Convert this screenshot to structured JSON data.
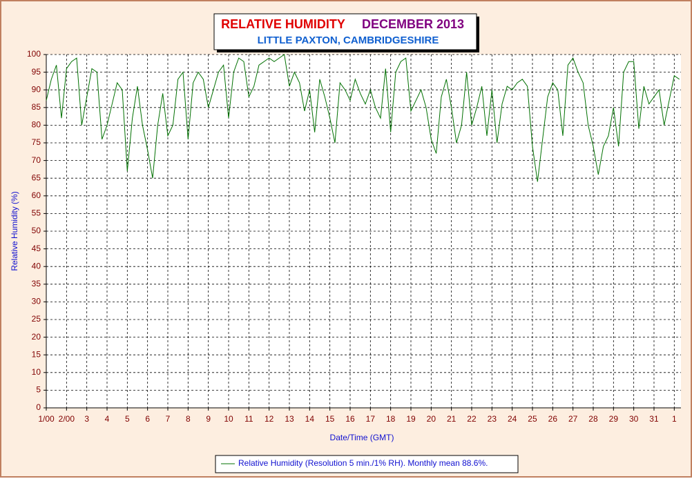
{
  "chart_data": {
    "type": "line",
    "title": "RELATIVE HUMIDITY",
    "title_period": "DECEMBER 2013",
    "subtitle": "LITTLE PAXTON, CAMBRIDGESHIRE",
    "x_label": "Date/Time (GMT)",
    "y_label": "Relative Humidity (%)",
    "x": [
      1,
      1.25,
      1.5,
      1.75,
      2,
      2.25,
      2.5,
      2.75,
      3,
      3.25,
      3.5,
      3.75,
      4,
      4.25,
      4.5,
      4.75,
      5,
      5.25,
      5.5,
      5.75,
      6,
      6.25,
      6.5,
      6.75,
      7,
      7.25,
      7.5,
      7.75,
      8,
      8.25,
      8.5,
      8.75,
      9,
      9.25,
      9.5,
      9.75,
      10,
      10.25,
      10.5,
      10.75,
      11,
      11.25,
      11.5,
      11.75,
      12,
      12.25,
      12.5,
      12.75,
      13,
      13.25,
      13.5,
      13.75,
      14,
      14.25,
      14.5,
      14.75,
      15,
      15.25,
      15.5,
      15.75,
      16,
      16.25,
      16.5,
      16.75,
      17,
      17.25,
      17.5,
      17.75,
      18,
      18.25,
      18.5,
      18.75,
      19,
      19.25,
      19.5,
      19.75,
      20,
      20.25,
      20.5,
      20.75,
      21,
      21.25,
      21.5,
      21.75,
      22,
      22.25,
      22.5,
      22.75,
      23,
      23.25,
      23.5,
      23.75,
      24,
      24.25,
      24.5,
      24.75,
      25,
      25.25,
      25.5,
      25.75,
      26,
      26.25,
      26.5,
      26.75,
      27,
      27.25,
      27.5,
      27.75,
      28,
      28.25,
      28.5,
      28.75,
      29,
      29.25,
      29.5,
      29.75,
      30,
      30.25,
      30.5,
      30.75,
      31,
      31.25,
      31.5,
      31.75,
      32,
      32.25
    ],
    "series": [
      {
        "name": "Relative Humidity (Resolution 5 min./1% RH). Monthly mean 88.6%.",
        "color": "#007000",
        "values": [
          87,
          93,
          97,
          82,
          96,
          98,
          99,
          80,
          88,
          96,
          95,
          76,
          80,
          86,
          92,
          90,
          67,
          82,
          91,
          80,
          73,
          65,
          80,
          89,
          77,
          80,
          93,
          95,
          76,
          92,
          95,
          93,
          85,
          90,
          95,
          97,
          82,
          95,
          99,
          98,
          88,
          91,
          97,
          98,
          99,
          98,
          99,
          100,
          91,
          95,
          92,
          84,
          90,
          78,
          93,
          88,
          82,
          75,
          92,
          90,
          87,
          93,
          89,
          86,
          90,
          85,
          82,
          96,
          78,
          95,
          98,
          99,
          84,
          87,
          90,
          85,
          76,
          72,
          88,
          93,
          85,
          75,
          80,
          95,
          80,
          85,
          91,
          77,
          90,
          75,
          86,
          91,
          90,
          92,
          93,
          91,
          74,
          64,
          76,
          88,
          92,
          90,
          77,
          97,
          99,
          95,
          92,
          80,
          74,
          66,
          74,
          77,
          85,
          74,
          95,
          98,
          98,
          79,
          91,
          86,
          88,
          90,
          80,
          87,
          94,
          93
        ]
      }
    ],
    "xlim": [
      1,
      32.33
    ],
    "ylim": [
      0,
      100
    ],
    "xticks": [
      {
        "value": 1,
        "label": "1/00"
      },
      {
        "value": 2,
        "label": "2/00"
      },
      3,
      4,
      5,
      6,
      7,
      8,
      9,
      10,
      11,
      12,
      13,
      14,
      15,
      16,
      17,
      18,
      19,
      20,
      21,
      22,
      23,
      24,
      25,
      26,
      27,
      28,
      29,
      30,
      31,
      {
        "value": 32,
        "label": "1"
      }
    ],
    "yticks": [
      0,
      5,
      10,
      15,
      20,
      25,
      30,
      35,
      40,
      45,
      50,
      55,
      60,
      65,
      70,
      75,
      80,
      85,
      90,
      95,
      100
    ],
    "grid": true
  }
}
